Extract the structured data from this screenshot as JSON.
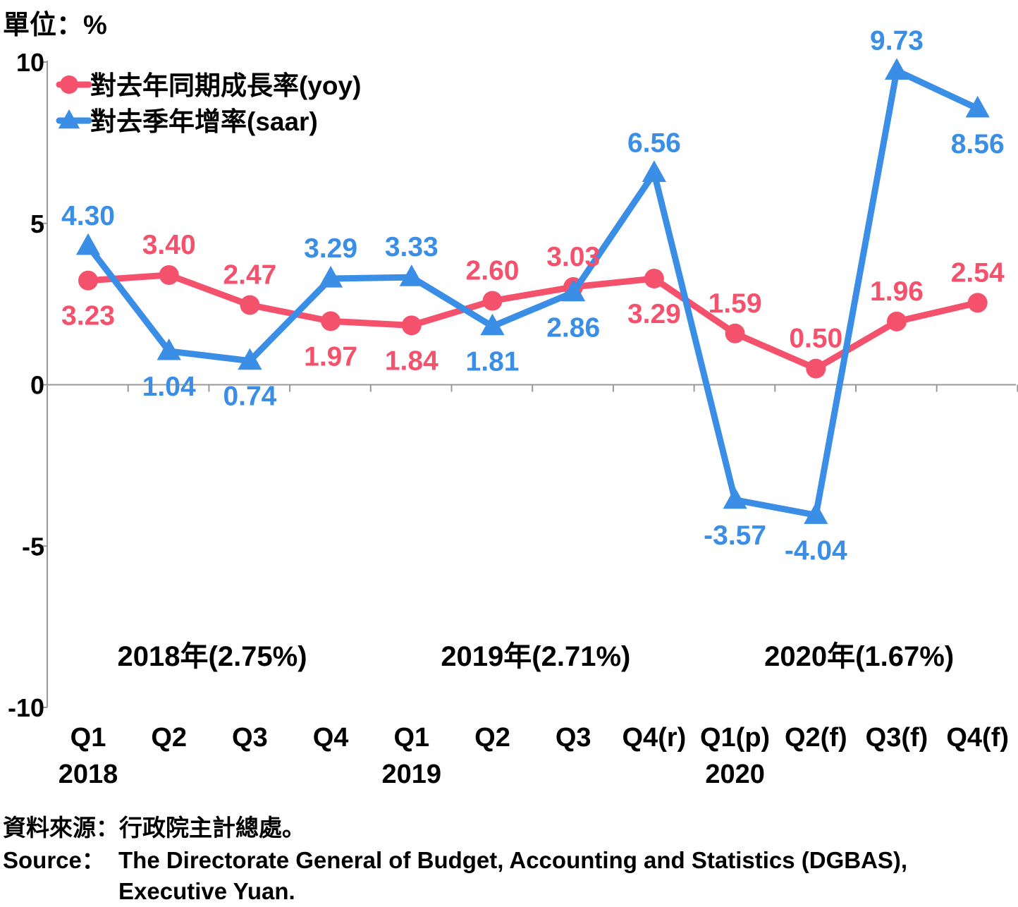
{
  "unit_label": "單位：%",
  "source": {
    "zh": "資料來源：行政院主計總處。",
    "en_label": "Source：",
    "en_line1": "The Directorate General of Budget, Accounting and Statistics (DGBAS),",
    "en_line2": "Executive Yuan."
  },
  "chart_data": {
    "type": "line",
    "categories": [
      "Q1",
      "Q2",
      "Q3",
      "Q4",
      "Q1",
      "Q2",
      "Q3",
      "Q4(r)",
      "Q1(p)",
      "Q2(f)",
      "Q3(f)",
      "Q4(f)"
    ],
    "year_labels": [
      {
        "label": "2018",
        "index": 0
      },
      {
        "label": "2019",
        "index": 4
      },
      {
        "label": "2020",
        "index": 8
      }
    ],
    "annual_labels": [
      {
        "label": "2018年(2.75%)",
        "center": 1.5
      },
      {
        "label": "2019年(2.71%)",
        "center": 5.5
      },
      {
        "label": "2020年(1.67%)",
        "center": 9.5
      }
    ],
    "ylim": [
      -10,
      10
    ],
    "yticks": [
      -10,
      -5,
      0,
      5,
      10
    ],
    "legend_position": "top-left",
    "series": [
      {
        "name": "對去年同期成長率(yoy)",
        "marker": "circle",
        "color": "#f4516c",
        "values": [
          3.23,
          3.4,
          2.47,
          1.97,
          1.84,
          2.6,
          3.03,
          3.29,
          1.59,
          0.5,
          1.96,
          2.54
        ],
        "labels": [
          "3.23",
          "3.40",
          "2.47",
          "1.97",
          "1.84",
          "2.60",
          "3.03",
          "3.29",
          "1.59",
          "0.50",
          "1.96",
          "2.54"
        ],
        "label_pos": [
          "below",
          "above",
          "above",
          "below",
          "below",
          "above",
          "above",
          "below",
          "above",
          "above",
          "above",
          "above"
        ]
      },
      {
        "name": "對去季年增率(saar)",
        "marker": "triangle",
        "color": "#3a8ee6",
        "values": [
          4.3,
          1.04,
          0.74,
          3.29,
          3.33,
          1.81,
          2.86,
          6.56,
          -3.57,
          -4.04,
          9.73,
          8.56
        ],
        "labels": [
          "4.30",
          "1.04",
          "0.74",
          "3.29",
          "3.33",
          "1.81",
          "2.86",
          "6.56",
          "-3.57",
          "-4.04",
          "9.73",
          "8.56"
        ],
        "label_pos": [
          "above",
          "below",
          "below",
          "above",
          "above",
          "below",
          "below",
          "above",
          "below",
          "below",
          "above",
          "below"
        ]
      }
    ]
  }
}
